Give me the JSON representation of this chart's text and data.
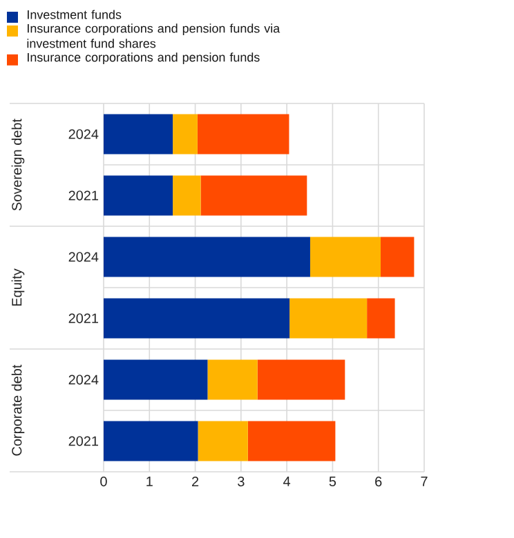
{
  "chart_data": {
    "type": "bar",
    "orientation": "horizontal",
    "stacked": true,
    "categories": [
      "2024",
      "2021",
      "2024",
      "2021",
      "2024",
      "2021"
    ],
    "annotations": [
      "Sovereign debt",
      "Equity",
      "Corporate debt"
    ],
    "series": [
      {
        "name": "Investment funds",
        "color": "#003299",
        "values": [
          1.51,
          1.51,
          4.51,
          4.06,
          2.27,
          2.06
        ]
      },
      {
        "name": "Insurance corporations and pension funds via investment fund shares",
        "color": "#ffb400",
        "values": [
          0.54,
          0.61,
          1.54,
          1.69,
          1.09,
          1.09
        ]
      },
      {
        "name": "Insurance corporations and pension funds",
        "color": "#ff4b00",
        "values": [
          2.0,
          2.32,
          0.73,
          0.61,
          1.91,
          1.91
        ]
      }
    ],
    "xlim": [
      0,
      7
    ],
    "xticks": [
      0,
      1,
      2,
      3,
      4,
      5,
      6,
      7
    ],
    "grid": "x",
    "legend": "top left"
  }
}
